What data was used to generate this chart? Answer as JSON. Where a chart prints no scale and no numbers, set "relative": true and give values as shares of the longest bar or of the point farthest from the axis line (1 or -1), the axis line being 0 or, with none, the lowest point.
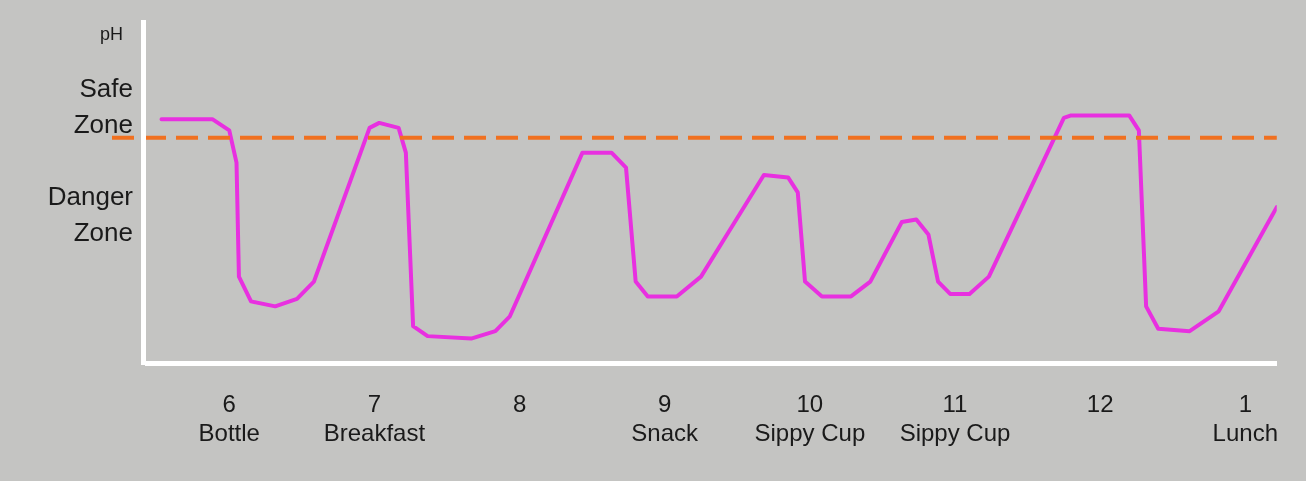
{
  "chart_data": {
    "type": "line",
    "relative": true,
    "ylabel": "pH",
    "annotations": [
      "Safe Zone",
      "Danger Zone"
    ],
    "xlim": [
      "--01-01T05:26",
      "--01-01T13:13"
    ],
    "xticks": [
      {
        "value": "--01-01T06:00",
        "label": "6\nBottle"
      },
      {
        "value": "--01-01T07:00",
        "label": "7\nBreakfast"
      },
      {
        "value": "--01-01T08:00",
        "label": "8"
      },
      {
        "value": "--01-01T09:00",
        "label": "9\nSnack"
      },
      {
        "value": "--01-01T10:00",
        "label": "10\nSippy Cup"
      },
      {
        "value": "--01-01T11:00",
        "label": "11\nSippy Cup"
      },
      {
        "value": "--01-01T12:00",
        "label": "12"
      },
      {
        "value": "--01-01T13:00",
        "label": "1\nLunch"
      }
    ],
    "series": [
      {
        "color": "#e830e0",
        "x": [
          "--01-01T05:32",
          "--01-01T05:53",
          "--01-01T06:00",
          "--01-01T06:03",
          "--01-01T06:04",
          "--01-01T06:09",
          "--01-01T06:19",
          "--01-01T06:28",
          "--01-01T06:35",
          "--01-01T06:58",
          "--01-01T07:02",
          "--01-01T07:10",
          "--01-01T07:13",
          "--01-01T07:16",
          "--01-01T07:22",
          "--01-01T07:40",
          "--01-01T07:50",
          "--01-01T07:56",
          "--01-01T08:26",
          "--01-01T08:38",
          "--01-01T08:44",
          "--01-01T08:48",
          "--01-01T08:53",
          "--01-01T09:05",
          "--01-01T09:15",
          "--01-01T09:41",
          "--01-01T09:51",
          "--01-01T09:55",
          "--01-01T09:58",
          "--01-01T10:05",
          "--01-01T10:17",
          "--01-01T10:25",
          "--01-01T10:38",
          "--01-01T10:44",
          "--01-01T10:49",
          "--01-01T10:53",
          "--01-01T10:58",
          "--01-01T11:06",
          "--01-01T11:14",
          "--01-01T11:45",
          "--01-01T11:48",
          "--01-01T12:12",
          "--01-01T12:16",
          "--01-01T12:19",
          "--01-01T12:24",
          "--01-01T12:37",
          "--01-01T12:49",
          "--01-01T13:13"
        ],
        "values": [
          0.985,
          0.985,
          0.94,
          0.81,
          0.35,
          0.25,
          0.23,
          0.26,
          0.33,
          0.95,
          0.97,
          0.95,
          0.85,
          0.15,
          0.11,
          0.1,
          0.13,
          0.19,
          0.85,
          0.85,
          0.79,
          0.33,
          0.27,
          0.27,
          0.35,
          0.76,
          0.75,
          0.69,
          0.33,
          0.27,
          0.27,
          0.33,
          0.57,
          0.58,
          0.52,
          0.33,
          0.28,
          0.28,
          0.35,
          0.99,
          1,
          1,
          0.94,
          0.23,
          0.14,
          0.13,
          0.21,
          0.63
        ]
      }
    ],
    "ref_lines": [
      {
        "axis": "y",
        "value": 0.91,
        "color": "#f07020",
        "line_style": "dashed"
      }
    ],
    "grid": false,
    "legend": false,
    "marker": "none",
    "line_style": "solid"
  }
}
